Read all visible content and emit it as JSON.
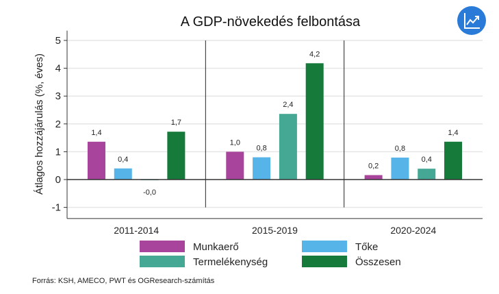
{
  "chart_data": {
    "type": "bar",
    "title": "A GDP-növekedés felbontása",
    "xlabel": "",
    "ylabel": "Átlagos hozzájárulás (%, éves)",
    "ylim": [
      -1.4,
      5.35
    ],
    "yticks": [
      -1,
      0,
      1,
      2,
      3,
      4,
      5
    ],
    "grid": true,
    "legend_position": "bottom",
    "categories": [
      "2011-2014",
      "2015-2019",
      "2020-2024"
    ],
    "series": [
      {
        "name": "Munkaerő",
        "color": "#a8449b",
        "values": [
          1.36,
          1.0,
          0.16
        ],
        "labels": [
          "1,4",
          "1,0",
          "0,2"
        ]
      },
      {
        "name": "Tőke",
        "color": "#56b4e9",
        "values": [
          0.4,
          0.8,
          0.79
        ],
        "labels": [
          "0,4",
          "0,8",
          "0,8"
        ]
      },
      {
        "name": "Termelékenység",
        "color": "#45a895",
        "values": [
          -0.02,
          2.36,
          0.39
        ],
        "labels": [
          "-0,0",
          "2,4",
          "0,4"
        ]
      },
      {
        "name": "Összesen",
        "color": "#157a3a",
        "values": [
          1.72,
          4.18,
          1.36
        ],
        "labels": [
          "1,7",
          "4,2",
          "1,4"
        ]
      }
    ],
    "source": "Forrás: KSH, AMECO, PWT és OGResearch-számítás"
  },
  "icon": {
    "name": "trend-chart-icon",
    "color": "#2a7bd8"
  }
}
